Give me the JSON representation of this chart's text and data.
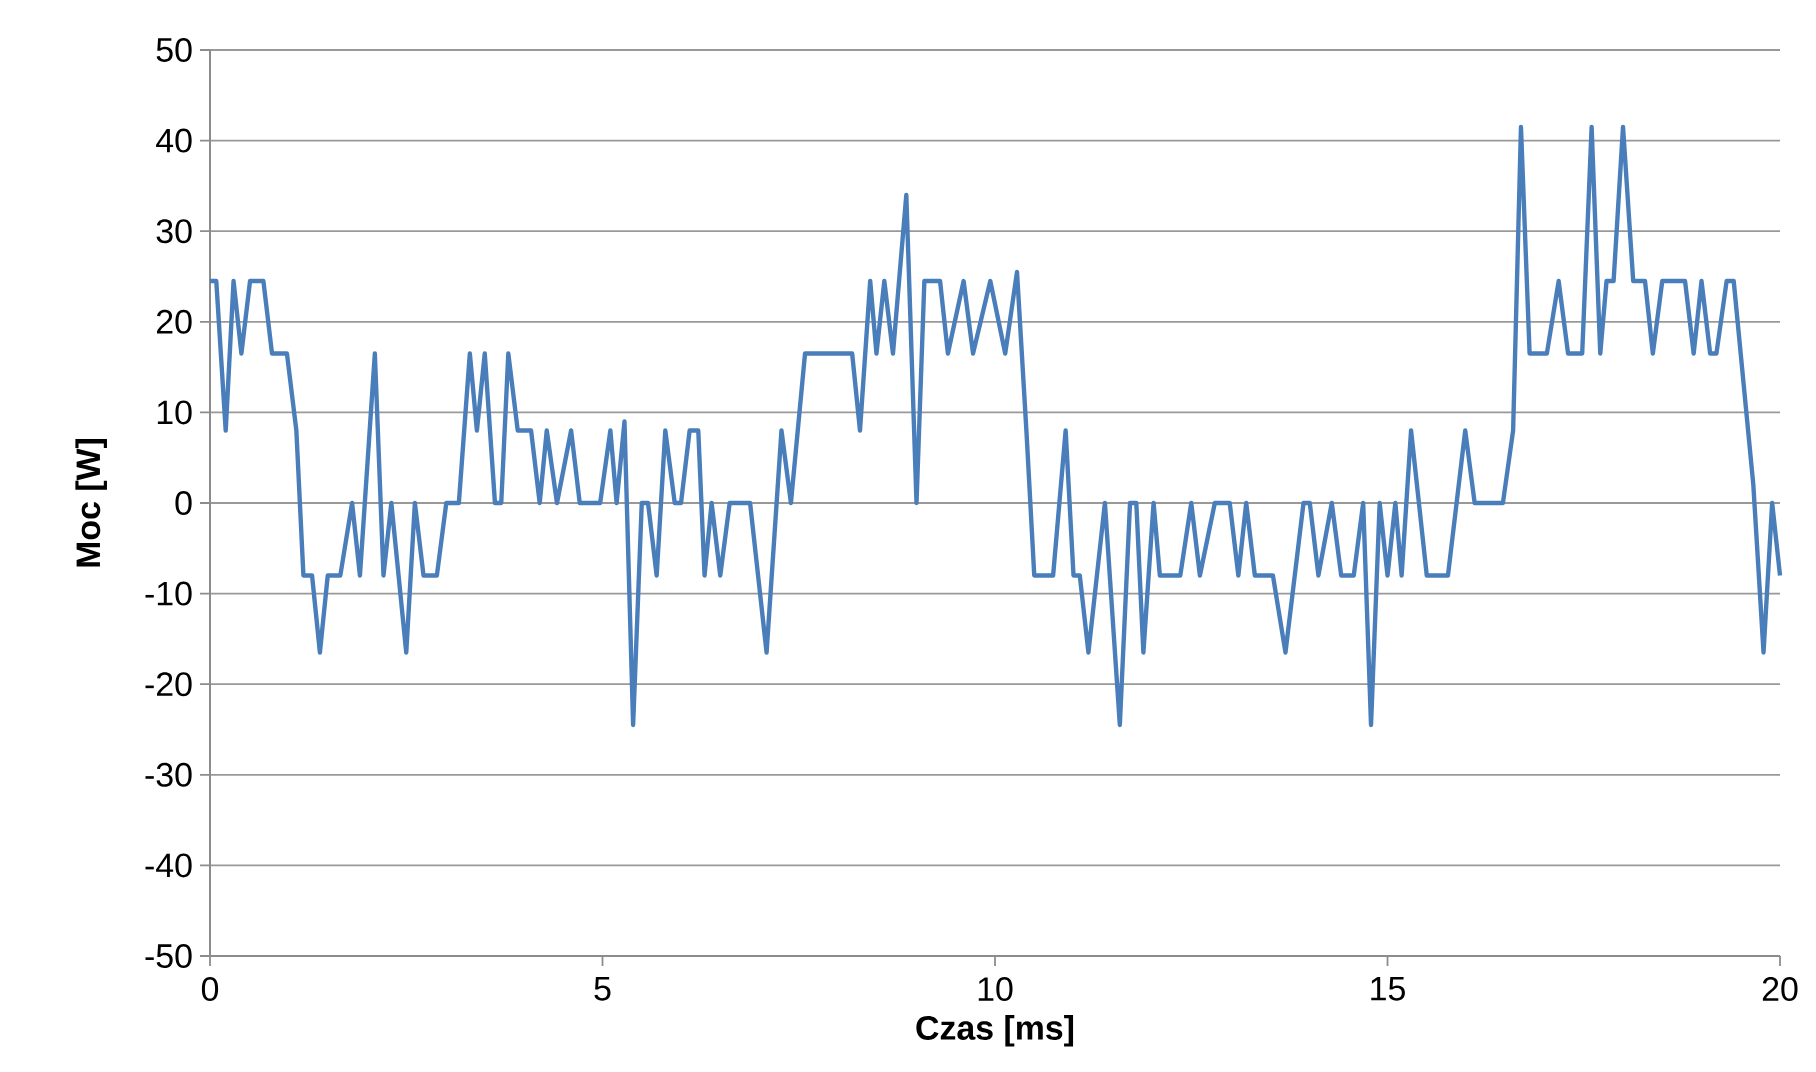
{
  "chart_data": {
    "type": "line",
    "xlabel": "Czas [ms]",
    "ylabel": "Moc [W]",
    "xlim": [
      0,
      20
    ],
    "ylim": [
      -50,
      50
    ],
    "xticks": [
      0,
      5,
      10,
      15,
      20
    ],
    "yticks": [
      -50,
      -40,
      -30,
      -20,
      -10,
      0,
      10,
      20,
      30,
      40,
      50
    ],
    "grid": "y",
    "line_style": "solid",
    "series": [
      {
        "color": "#4a7ebb",
        "x": [
          0,
          0.08,
          0.2,
          0.3,
          0.4,
          0.51,
          0.68,
          0.79,
          0.98,
          1.1,
          1.19,
          1.3,
          1.4,
          1.5,
          1.66,
          1.81,
          1.91,
          2.1,
          2.21,
          2.31,
          2.5,
          2.61,
          2.72,
          2.89,
          3.01,
          3.17,
          3.31,
          3.4,
          3.5,
          3.63,
          3.71,
          3.8,
          3.92,
          4.09,
          4.2,
          4.29,
          4.42,
          4.6,
          4.71,
          4.97,
          5.1,
          5.18,
          5.28,
          5.39,
          5.5,
          5.58,
          5.69,
          5.8,
          5.92,
          6.0,
          6.11,
          6.22,
          6.3,
          6.39,
          6.5,
          6.62,
          6.88,
          7.09,
          7.28,
          7.4,
          7.58,
          7.85,
          8.18,
          8.28,
          8.41,
          8.49,
          8.59,
          8.7,
          8.87,
          9.0,
          9.1,
          9.3,
          9.4,
          9.6,
          9.72,
          9.94,
          10.13,
          10.28,
          10.4,
          10.5,
          10.74,
          10.9,
          11.0,
          11.08,
          11.19,
          11.4,
          11.59,
          11.72,
          11.8,
          11.89,
          12.02,
          12.1,
          12.36,
          12.5,
          12.61,
          12.8,
          12.99,
          13.1,
          13.2,
          13.31,
          13.54,
          13.7,
          13.93,
          14.01,
          14.12,
          14.29,
          14.41,
          14.57,
          14.69,
          14.79,
          14.9,
          15.0,
          15.1,
          15.18,
          15.3,
          15.5,
          15.77,
          15.99,
          16.11,
          16.47,
          16.6,
          16.7,
          16.81,
          17.03,
          17.18,
          17.3,
          17.48,
          17.6,
          17.71,
          17.79,
          17.88,
          18.0,
          18.13,
          18.28,
          18.38,
          18.5,
          18.79,
          18.9,
          19.0,
          19.11,
          19.19,
          19.32,
          19.41,
          19.66,
          19.79,
          19.9,
          20.0
        ],
        "values": [
          24.5,
          24.5,
          8,
          24.5,
          16.5,
          24.5,
          24.5,
          16.5,
          16.5,
          8,
          -8,
          -8,
          -16.5,
          -8,
          -8,
          0,
          -8,
          16.5,
          -8,
          0,
          -16.5,
          0,
          -8,
          -8,
          0,
          0,
          16.5,
          8,
          16.5,
          0,
          0,
          16.5,
          8,
          8,
          0,
          8,
          0,
          8,
          0,
          0,
          8,
          0,
          9,
          -24.5,
          0,
          0,
          -8,
          8,
          0,
          0,
          8,
          8,
          -8,
          0,
          -8,
          0,
          0,
          -16.5,
          8,
          0,
          16.5,
          16.5,
          16.5,
          8,
          24.5,
          16.5,
          24.5,
          16.5,
          34,
          0,
          24.5,
          24.5,
          16.5,
          24.5,
          16.5,
          24.5,
          16.5,
          25.5,
          8,
          -8,
          -8,
          8,
          -8,
          -8,
          -16.5,
          0,
          -24.5,
          0,
          0,
          -16.5,
          0,
          -8,
          -8,
          0,
          -8,
          0,
          0,
          -8,
          0,
          -8,
          -8,
          -16.5,
          0,
          0,
          -8,
          0,
          -8,
          -8,
          0,
          -24.5,
          0,
          -8,
          0,
          -8,
          8,
          -8,
          -8,
          8,
          0,
          0,
          8,
          41.5,
          16.5,
          16.5,
          24.5,
          16.5,
          16.5,
          41.5,
          16.5,
          24.5,
          24.5,
          41.5,
          24.5,
          24.5,
          16.5,
          24.5,
          24.5,
          16.5,
          24.5,
          16.5,
          16.5,
          24.5,
          24.5,
          2,
          -16.5,
          0,
          -8
        ]
      }
    ]
  }
}
